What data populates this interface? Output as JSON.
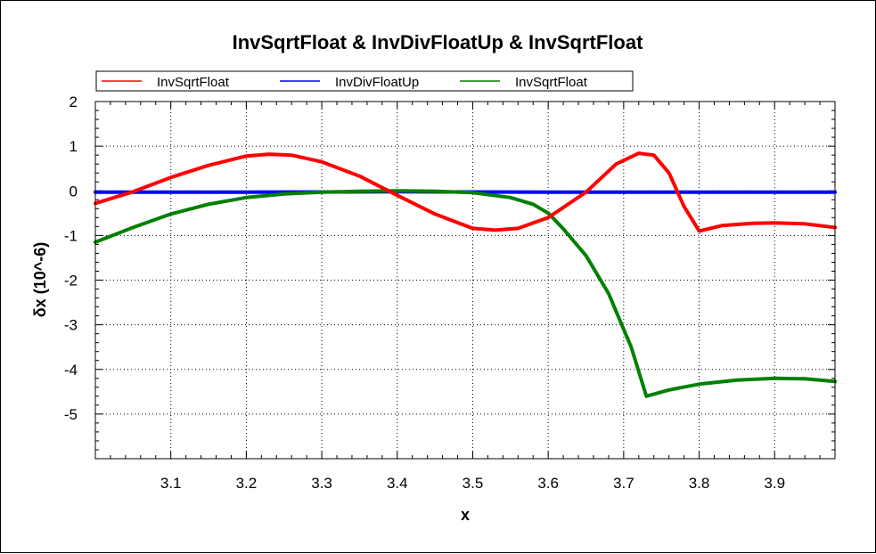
{
  "chart_data": {
    "type": "line",
    "title": "InvSqrtFloat & InvDivFloatUp & InvSqrtFloat",
    "xlabel": "x",
    "ylabel": "δx (10^-6)",
    "xlim": [
      3.0,
      3.98
    ],
    "ylim": [
      -6,
      2
    ],
    "x_ticks": [
      3.1,
      3.2,
      3.3,
      3.4,
      3.5,
      3.6,
      3.7,
      3.8,
      3.9
    ],
    "x_tick_labels": [
      "3.1",
      "3.2",
      "3.3",
      "3.4",
      "3.5",
      "3.6",
      "3.7",
      "3.8",
      "3.9"
    ],
    "y_ticks": [
      2,
      1,
      0,
      -1,
      -2,
      -3,
      -4,
      -5
    ],
    "y_tick_labels": [
      "2",
      "1",
      "0",
      "-1",
      "-2",
      "-3",
      "-4",
      "-5"
    ],
    "grid": true,
    "legend_position": "top",
    "series": [
      {
        "name": "InvSqrtFloat",
        "color": "#ff0000",
        "points": [
          [
            3.0,
            -0.28
          ],
          [
            3.05,
            -0.02
          ],
          [
            3.1,
            0.3
          ],
          [
            3.15,
            0.57
          ],
          [
            3.2,
            0.78
          ],
          [
            3.23,
            0.82
          ],
          [
            3.26,
            0.8
          ],
          [
            3.3,
            0.65
          ],
          [
            3.35,
            0.33
          ],
          [
            3.4,
            -0.1
          ],
          [
            3.45,
            -0.52
          ],
          [
            3.5,
            -0.84
          ],
          [
            3.53,
            -0.88
          ],
          [
            3.56,
            -0.84
          ],
          [
            3.6,
            -0.6
          ],
          [
            3.65,
            -0.03
          ],
          [
            3.69,
            0.6
          ],
          [
            3.72,
            0.84
          ],
          [
            3.74,
            0.8
          ],
          [
            3.76,
            0.4
          ],
          [
            3.78,
            -0.35
          ],
          [
            3.8,
            -0.9
          ],
          [
            3.83,
            -0.78
          ],
          [
            3.87,
            -0.73
          ],
          [
            3.9,
            -0.72
          ],
          [
            3.94,
            -0.74
          ],
          [
            3.98,
            -0.82
          ]
        ]
      },
      {
        "name": "InvDivFloatUp",
        "color": "#0000ff",
        "points": [
          [
            3.0,
            -0.03
          ],
          [
            3.2,
            -0.03
          ],
          [
            3.4,
            -0.02
          ],
          [
            3.6,
            -0.03
          ],
          [
            3.8,
            -0.03
          ],
          [
            3.98,
            -0.03
          ]
        ]
      },
      {
        "name": "InvSqrtFloat",
        "color": "#008000",
        "points": [
          [
            3.0,
            -1.15
          ],
          [
            3.05,
            -0.82
          ],
          [
            3.1,
            -0.52
          ],
          [
            3.15,
            -0.3
          ],
          [
            3.2,
            -0.15
          ],
          [
            3.25,
            -0.07
          ],
          [
            3.3,
            -0.03
          ],
          [
            3.35,
            -0.01
          ],
          [
            3.4,
            0.0
          ],
          [
            3.45,
            -0.01
          ],
          [
            3.5,
            -0.04
          ],
          [
            3.55,
            -0.15
          ],
          [
            3.58,
            -0.3
          ],
          [
            3.6,
            -0.5
          ],
          [
            3.62,
            -0.85
          ],
          [
            3.65,
            -1.45
          ],
          [
            3.68,
            -2.3
          ],
          [
            3.71,
            -3.5
          ],
          [
            3.73,
            -4.6
          ],
          [
            3.76,
            -4.46
          ],
          [
            3.8,
            -4.33
          ],
          [
            3.85,
            -4.24
          ],
          [
            3.9,
            -4.2
          ],
          [
            3.94,
            -4.21
          ],
          [
            3.98,
            -4.27
          ]
        ]
      }
    ]
  }
}
